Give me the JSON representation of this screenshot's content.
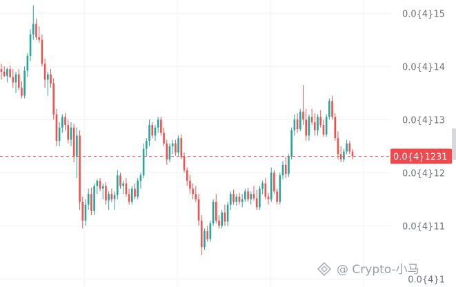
{
  "chart_data": {
    "type": "candlestick",
    "title": "",
    "xlabel": "",
    "ylabel": "",
    "y_ticks": [
      {
        "value": 1.5,
        "label": "0.0{4}15"
      },
      {
        "value": 1.4,
        "label": "0.0{4}14"
      },
      {
        "value": 1.3,
        "label": "0.0{4}13"
      },
      {
        "value": 1.2,
        "label": "0.0{4}12"
      },
      {
        "value": 1.1,
        "label": "0.0{4}11"
      },
      {
        "value": 1.0,
        "label": "0.0{4}1"
      }
    ],
    "ylim": [
      0.985,
      1.525
    ],
    "grid": true,
    "current_price": {
      "value": 1.231,
      "label": "0.0{4}1231"
    },
    "colors": {
      "up": "#26a69a",
      "down": "#ef5350",
      "grid": "#f1f2f4",
      "label_bg": "#f0484d"
    },
    "candles": [
      [
        1.395,
        1.405,
        1.375,
        1.39
      ],
      [
        1.39,
        1.4,
        1.38,
        1.382
      ],
      [
        1.382,
        1.398,
        1.37,
        1.395
      ],
      [
        1.395,
        1.402,
        1.378,
        1.38
      ],
      [
        1.38,
        1.395,
        1.36,
        1.37
      ],
      [
        1.37,
        1.39,
        1.35,
        1.385
      ],
      [
        1.385,
        1.395,
        1.355,
        1.36
      ],
      [
        1.36,
        1.372,
        1.34,
        1.345
      ],
      [
        1.345,
        1.4,
        1.34,
        1.392
      ],
      [
        1.392,
        1.425,
        1.38,
        1.42
      ],
      [
        1.42,
        1.47,
        1.41,
        1.46
      ],
      [
        1.46,
        1.515,
        1.45,
        1.48
      ],
      [
        1.48,
        1.49,
        1.45,
        1.455
      ],
      [
        1.455,
        1.475,
        1.445,
        1.45
      ],
      [
        1.45,
        1.46,
        1.4,
        1.405
      ],
      [
        1.405,
        1.415,
        1.36,
        1.375
      ],
      [
        1.375,
        1.39,
        1.345,
        1.385
      ],
      [
        1.385,
        1.395,
        1.36,
        1.368
      ],
      [
        1.368,
        1.378,
        1.3,
        1.31
      ],
      [
        1.31,
        1.32,
        1.25,
        1.26
      ],
      [
        1.26,
        1.295,
        1.25,
        1.285
      ],
      [
        1.285,
        1.31,
        1.275,
        1.305
      ],
      [
        1.305,
        1.312,
        1.28,
        1.29
      ],
      [
        1.29,
        1.3,
        1.255,
        1.262
      ],
      [
        1.262,
        1.295,
        1.25,
        1.285
      ],
      [
        1.285,
        1.292,
        1.22,
        1.23
      ],
      [
        1.23,
        1.285,
        1.19,
        1.27
      ],
      [
        1.27,
        1.28,
        1.13,
        1.145
      ],
      [
        1.145,
        1.155,
        1.095,
        1.11
      ],
      [
        1.11,
        1.15,
        1.1,
        1.14
      ],
      [
        1.14,
        1.17,
        1.13,
        1.16
      ],
      [
        1.16,
        1.172,
        1.12,
        1.128
      ],
      [
        1.128,
        1.18,
        1.12,
        1.175
      ],
      [
        1.175,
        1.188,
        1.16,
        1.185
      ],
      [
        1.185,
        1.19,
        1.165,
        1.17
      ],
      [
        1.17,
        1.18,
        1.15,
        1.175
      ],
      [
        1.175,
        1.182,
        1.14,
        1.148
      ],
      [
        1.148,
        1.165,
        1.13,
        1.16
      ],
      [
        1.16,
        1.17,
        1.145,
        1.15
      ],
      [
        1.15,
        1.165,
        1.13,
        1.158
      ],
      [
        1.158,
        1.205,
        1.15,
        1.195
      ],
      [
        1.195,
        1.2,
        1.17,
        1.175
      ],
      [
        1.175,
        1.185,
        1.16,
        1.18
      ],
      [
        1.18,
        1.19,
        1.155,
        1.16
      ],
      [
        1.16,
        1.17,
        1.14,
        1.145
      ],
      [
        1.145,
        1.175,
        1.14,
        1.17
      ],
      [
        1.17,
        1.18,
        1.15,
        1.155
      ],
      [
        1.155,
        1.19,
        1.15,
        1.185
      ],
      [
        1.185,
        1.2,
        1.17,
        1.195
      ],
      [
        1.195,
        1.255,
        1.19,
        1.245
      ],
      [
        1.245,
        1.265,
        1.23,
        1.26
      ],
      [
        1.26,
        1.3,
        1.25,
        1.29
      ],
      [
        1.29,
        1.295,
        1.265,
        1.27
      ],
      [
        1.27,
        1.29,
        1.26,
        1.285
      ],
      [
        1.285,
        1.305,
        1.275,
        1.3
      ],
      [
        1.3,
        1.305,
        1.27,
        1.275
      ],
      [
        1.275,
        1.285,
        1.25,
        1.255
      ],
      [
        1.255,
        1.262,
        1.215,
        1.225
      ],
      [
        1.225,
        1.255,
        1.22,
        1.25
      ],
      [
        1.25,
        1.262,
        1.235,
        1.255
      ],
      [
        1.255,
        1.262,
        1.232,
        1.238
      ],
      [
        1.238,
        1.27,
        1.232,
        1.265
      ],
      [
        1.265,
        1.272,
        1.225,
        1.23
      ],
      [
        1.23,
        1.238,
        1.2,
        1.205
      ],
      [
        1.205,
        1.21,
        1.175,
        1.185
      ],
      [
        1.185,
        1.195,
        1.16,
        1.17
      ],
      [
        1.17,
        1.18,
        1.15,
        1.16
      ],
      [
        1.16,
        1.175,
        1.145,
        1.15
      ],
      [
        1.15,
        1.16,
        1.1,
        1.11
      ],
      [
        1.11,
        1.12,
        1.045,
        1.06
      ],
      [
        1.06,
        1.095,
        1.055,
        1.09
      ],
      [
        1.09,
        1.1,
        1.07,
        1.075
      ],
      [
        1.075,
        1.11,
        1.07,
        1.105
      ],
      [
        1.105,
        1.15,
        1.1,
        1.145
      ],
      [
        1.145,
        1.16,
        1.105,
        1.11
      ],
      [
        1.11,
        1.12,
        1.095,
        1.1
      ],
      [
        1.1,
        1.13,
        1.095,
        1.125
      ],
      [
        1.125,
        1.14,
        1.1,
        1.108
      ],
      [
        1.108,
        1.145,
        1.1,
        1.14
      ],
      [
        1.14,
        1.165,
        1.13,
        1.16
      ],
      [
        1.16,
        1.168,
        1.14,
        1.145
      ],
      [
        1.145,
        1.16,
        1.138,
        1.155
      ],
      [
        1.155,
        1.162,
        1.14,
        1.145
      ],
      [
        1.145,
        1.16,
        1.135,
        1.15
      ],
      [
        1.15,
        1.17,
        1.145,
        1.165
      ],
      [
        1.165,
        1.172,
        1.145,
        1.15
      ],
      [
        1.15,
        1.165,
        1.14,
        1.16
      ],
      [
        1.16,
        1.175,
        1.148,
        1.152
      ],
      [
        1.152,
        1.168,
        1.13,
        1.135
      ],
      [
        1.135,
        1.175,
        1.13,
        1.17
      ],
      [
        1.17,
        1.185,
        1.16,
        1.18
      ],
      [
        1.18,
        1.19,
        1.15,
        1.155
      ],
      [
        1.155,
        1.162,
        1.14,
        1.15
      ],
      [
        1.15,
        1.21,
        1.145,
        1.2
      ],
      [
        1.2,
        1.205,
        1.16,
        1.165
      ],
      [
        1.165,
        1.17,
        1.14,
        1.145
      ],
      [
        1.145,
        1.2,
        1.14,
        1.195
      ],
      [
        1.195,
        1.222,
        1.188,
        1.215
      ],
      [
        1.215,
        1.23,
        1.19,
        1.198
      ],
      [
        1.198,
        1.235,
        1.192,
        1.23
      ],
      [
        1.23,
        1.285,
        1.225,
        1.28
      ],
      [
        1.28,
        1.31,
        1.27,
        1.3
      ],
      [
        1.3,
        1.312,
        1.275,
        1.282
      ],
      [
        1.282,
        1.32,
        1.278,
        1.315
      ],
      [
        1.315,
        1.365,
        1.29,
        1.3
      ],
      [
        1.3,
        1.32,
        1.26,
        1.27
      ],
      [
        1.27,
        1.31,
        1.26,
        1.305
      ],
      [
        1.305,
        1.32,
        1.29,
        1.295
      ],
      [
        1.295,
        1.312,
        1.27,
        1.28
      ],
      [
        1.28,
        1.31,
        1.27,
        1.305
      ],
      [
        1.305,
        1.318,
        1.285,
        1.29
      ],
      [
        1.29,
        1.3,
        1.268,
        1.272
      ],
      [
        1.272,
        1.31,
        1.268,
        1.305
      ],
      [
        1.305,
        1.34,
        1.3,
        1.335
      ],
      [
        1.335,
        1.345,
        1.3,
        1.305
      ],
      [
        1.305,
        1.312,
        1.26,
        1.265
      ],
      [
        1.265,
        1.278,
        1.225,
        1.235
      ],
      [
        1.235,
        1.25,
        1.22,
        1.225
      ],
      [
        1.225,
        1.245,
        1.22,
        1.24
      ],
      [
        1.24,
        1.262,
        1.235,
        1.255
      ],
      [
        1.255,
        1.26,
        1.235,
        1.24
      ],
      [
        1.24,
        1.245,
        1.225,
        1.231
      ]
    ]
  },
  "watermark": {
    "text": "@ Crypto-小马"
  }
}
